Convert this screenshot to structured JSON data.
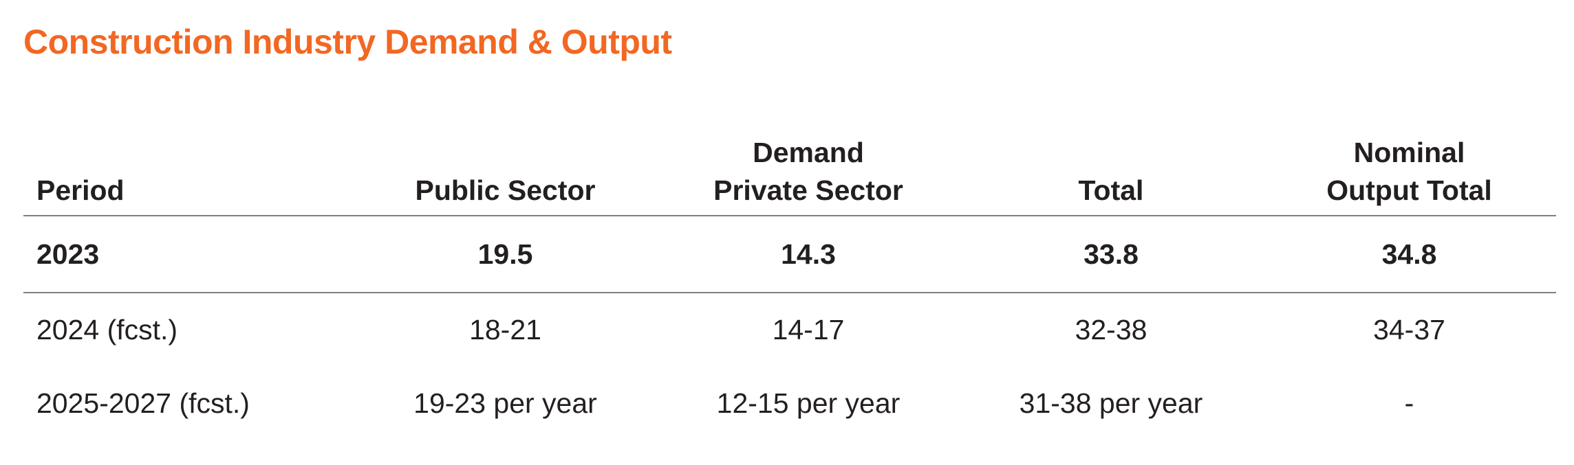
{
  "title": "Construction Industry Demand & Output",
  "colors": {
    "title": "#f26722",
    "text": "#231f20",
    "rule": "#808080"
  },
  "table": {
    "headers": {
      "period": "Period",
      "public_sector": "Public Sector",
      "demand_group": "Demand",
      "private_sector": "Private Sector",
      "total": "Total",
      "nominal_line1": "Nominal",
      "nominal_line2": "Output Total"
    },
    "rows": [
      {
        "period": "2023",
        "public_sector": "19.5",
        "private_sector": "14.3",
        "total": "33.8",
        "nominal_output_total": "34.8"
      },
      {
        "period": "2024 (fcst.)",
        "public_sector": "18-21",
        "private_sector": "14-17",
        "total": "32-38",
        "nominal_output_total": "34-37"
      },
      {
        "period": "2025-2027 (fcst.)",
        "public_sector": "19-23 per year",
        "private_sector": "12-15 per year",
        "total": "31-38 per year",
        "nominal_output_total": "-"
      }
    ]
  }
}
